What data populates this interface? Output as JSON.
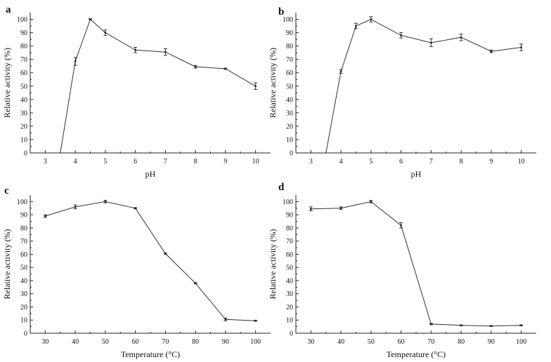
{
  "chart_data": [
    {
      "panel": "a",
      "type": "line",
      "xlabel": "pH",
      "ylabel": "Relative activity (%)",
      "xlim": [
        2.5,
        10.5
      ],
      "ylim": [
        0,
        105
      ],
      "xticks": [
        3,
        4,
        5,
        6,
        7,
        8,
        9,
        10
      ],
      "yticks": [
        0,
        10,
        20,
        30,
        40,
        50,
        60,
        70,
        80,
        90,
        100
      ],
      "grid": false,
      "legend": "none",
      "series": [
        {
          "x": [
            3.5,
            4,
            4.5,
            5,
            6,
            7,
            8,
            9,
            10
          ],
          "y": [
            0,
            68.5,
            100,
            90,
            77,
            75.5,
            64.5,
            63,
            50
          ],
          "err": [
            0,
            3,
            0.5,
            2,
            2,
            2.5,
            1,
            0.5,
            2.5
          ]
        }
      ]
    },
    {
      "panel": "b",
      "type": "line",
      "xlabel": "pH",
      "ylabel": "Relative activity (%)",
      "xlim": [
        2.5,
        10.5
      ],
      "ylim": [
        0,
        105
      ],
      "xticks": [
        3,
        4,
        5,
        6,
        7,
        8,
        9,
        10
      ],
      "yticks": [
        0,
        10,
        20,
        30,
        40,
        50,
        60,
        70,
        80,
        90,
        100
      ],
      "grid": false,
      "legend": "none",
      "series": [
        {
          "x": [
            3.5,
            4,
            4.5,
            5,
            6,
            7,
            8,
            9,
            10
          ],
          "y": [
            0,
            61,
            95,
            100,
            88,
            82.5,
            86.5,
            76,
            79
          ],
          "err": [
            0,
            1.5,
            2,
            2,
            2,
            3,
            2.5,
            1,
            2.5
          ]
        }
      ]
    },
    {
      "panel": "c",
      "type": "line",
      "xlabel": "Temperature (°C)",
      "ylabel": "Relative activity (%)",
      "xlim": [
        25,
        105
      ],
      "ylim": [
        0,
        105
      ],
      "xticks": [
        30,
        40,
        50,
        60,
        70,
        80,
        90,
        100
      ],
      "yticks": [
        0,
        10,
        20,
        30,
        40,
        50,
        60,
        70,
        80,
        90,
        100
      ],
      "grid": false,
      "legend": "none",
      "series": [
        {
          "x": [
            30,
            40,
            50,
            60,
            70,
            80,
            90,
            100
          ],
          "y": [
            89,
            96,
            100,
            95,
            60.5,
            38,
            10.5,
            9.5
          ],
          "err": [
            1,
            1.5,
            1,
            0.5,
            0.5,
            0.5,
            1,
            0.3
          ]
        }
      ]
    },
    {
      "panel": "d",
      "type": "line",
      "xlabel": "Temperature (°C)",
      "ylabel": "Relative activity (%)",
      "xlim": [
        25,
        105
      ],
      "ylim": [
        0,
        105
      ],
      "xticks": [
        30,
        40,
        50,
        60,
        70,
        80,
        90,
        100
      ],
      "yticks": [
        0,
        10,
        20,
        30,
        40,
        50,
        60,
        70,
        80,
        90,
        100
      ],
      "grid": false,
      "legend": "none",
      "series": [
        {
          "x": [
            30,
            40,
            50,
            60,
            70,
            80,
            90,
            100
          ],
          "y": [
            94.5,
            95,
            100,
            82,
            7,
            6,
            5.5,
            6
          ],
          "err": [
            1.5,
            1,
            1,
            2,
            0.5,
            0.3,
            0.3,
            0.3
          ]
        }
      ]
    }
  ]
}
